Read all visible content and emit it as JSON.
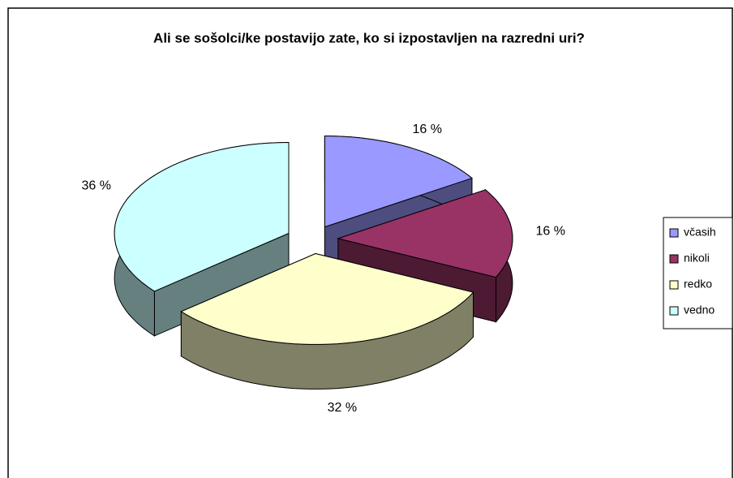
{
  "chart_data": {
    "type": "pie",
    "title": "Ali se sošolci/ke postavijo zate, ko si izpostavljen na razredni uri?",
    "categories": [
      "včasih",
      "nikoli",
      "redko",
      "vedno"
    ],
    "values": [
      16,
      16,
      32,
      36
    ],
    "value_labels": [
      "16 %",
      "16 %",
      "32 %",
      "36 %"
    ],
    "colors": [
      "#9999ff",
      "#993366",
      "#ffffcc",
      "#ccffff"
    ],
    "legend": "right"
  }
}
